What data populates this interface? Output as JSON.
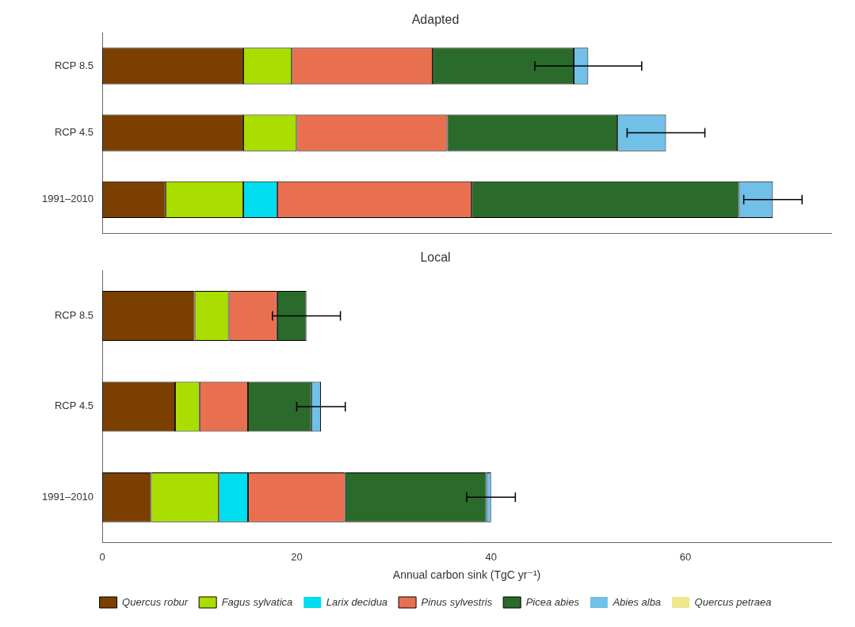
{
  "chart_data": [
    {
      "type": "bar",
      "title": "Adapted",
      "orientation": "horizontal",
      "stacked": true,
      "categories": [
        "RCP 8.5",
        "RCP 4.5",
        "1991–2010"
      ],
      "series": [
        {
          "name": "Quercus robur",
          "color": "#7B3F00",
          "values": [
            14.5,
            14.5,
            6.5
          ]
        },
        {
          "name": "Fagus sylvatica",
          "color": "#AADD00",
          "values": [
            5.0,
            5.5,
            8.0
          ]
        },
        {
          "name": "Larix decidua",
          "color": "#00DDEE",
          "values": [
            0.0,
            0.0,
            3.5
          ]
        },
        {
          "name": "Pinus sylvestris",
          "color": "#E87050",
          "values": [
            14.5,
            15.5,
            20.0
          ]
        },
        {
          "name": "Picea abies",
          "color": "#2A6A2A",
          "values": [
            14.5,
            17.5,
            27.5
          ]
        },
        {
          "name": "Abies alba",
          "color": "#70C0E8",
          "values": [
            1.5,
            5.0,
            3.5
          ]
        }
      ],
      "errors": [
        5.5,
        4.0,
        3.0
      ],
      "xlim": [
        0,
        75
      ],
      "xticks": [
        0,
        20,
        40,
        60
      ],
      "grid": false,
      "tick_labels": "y"
    },
    {
      "type": "bar",
      "title": "Local",
      "orientation": "horizontal",
      "stacked": true,
      "categories": [
        "RCP 8.5",
        "RCP 4.5",
        "1991–2010"
      ],
      "series": [
        {
          "name": "Quercus robur",
          "color": "#7B3F00",
          "values": [
            9.5,
            7.5,
            5.0
          ]
        },
        {
          "name": "Fagus sylvatica",
          "color": "#AADD00",
          "values": [
            3.5,
            2.5,
            7.0
          ]
        },
        {
          "name": "Larix decidua",
          "color": "#00DDEE",
          "values": [
            0.0,
            0.0,
            3.0
          ]
        },
        {
          "name": "Pinus sylvestris",
          "color": "#E87050",
          "values": [
            5.0,
            5.0,
            10.0
          ]
        },
        {
          "name": "Picea abies",
          "color": "#2A6A2A",
          "values": [
            3.0,
            6.5,
            14.5
          ]
        },
        {
          "name": "Abies alba",
          "color": "#70C0E8",
          "values": [
            0.0,
            1.0,
            0.5
          ]
        },
        {
          "name": "Quercus petraea",
          "color": "#F0E68C",
          "values": [
            null,
            null,
            null
          ]
        }
      ],
      "errors": [
        3.5,
        2.5,
        2.5
      ],
      "xlabel": "Annual carbon sink (TgC yr⁻¹)",
      "xlim": [
        0,
        75
      ],
      "xticks": [
        0,
        20,
        40,
        60
      ],
      "grid": false,
      "legend": "bottom"
    }
  ]
}
